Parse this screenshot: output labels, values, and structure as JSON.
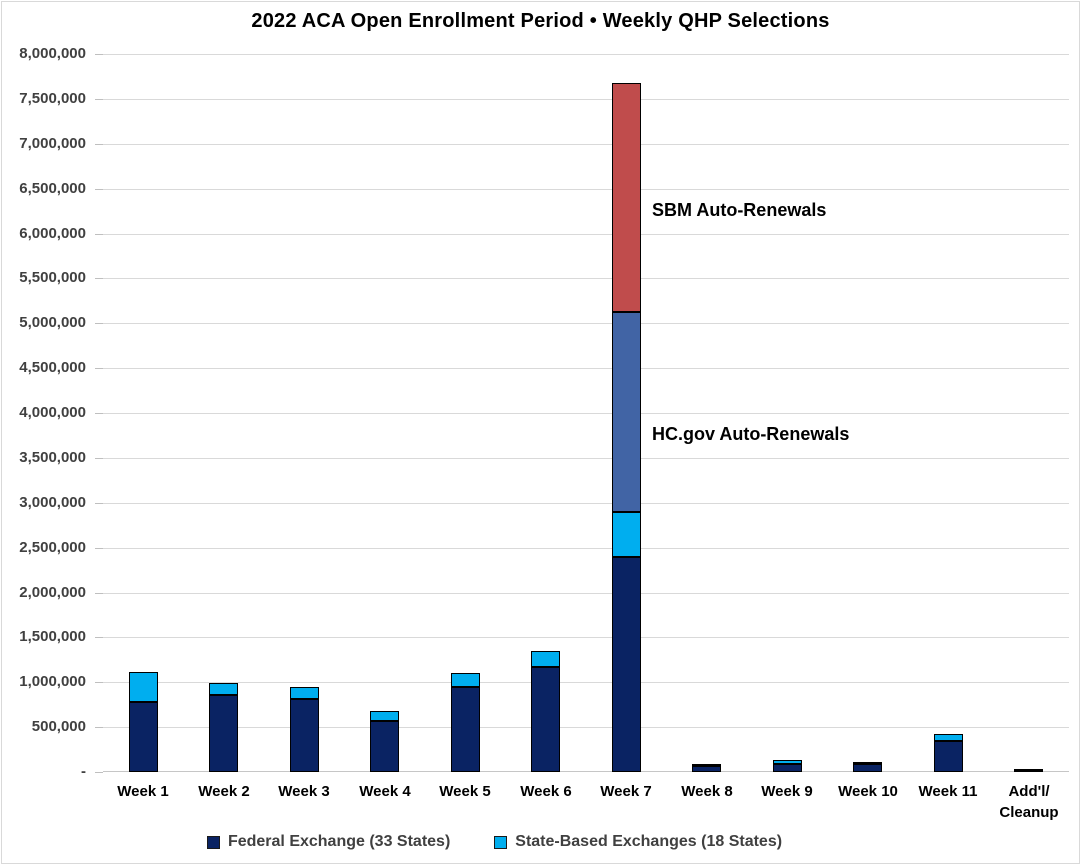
{
  "chart_data": {
    "type": "bar",
    "stacked": true,
    "title": "2022 ACA Open Enrollment Period • Weekly QHP Selections",
    "xlabel": "",
    "ylabel": "",
    "ylim": [
      0,
      8000000
    ],
    "ytick_step": 500000,
    "grid": true,
    "legend_position": "bottom",
    "categories": [
      "Week 1",
      "Week 2",
      "Week 3",
      "Week 4",
      "Week 5",
      "Week 6",
      "Week 7",
      "Week 8",
      "Week 9",
      "Week 10",
      "Week 11",
      "Add'l/Cleanup"
    ],
    "category_label_lines": [
      [
        "Week 1"
      ],
      [
        "Week 2"
      ],
      [
        "Week 3"
      ],
      [
        "Week 4"
      ],
      [
        "Week 5"
      ],
      [
        "Week 6"
      ],
      [
        "Week 7"
      ],
      [
        "Week 8"
      ],
      [
        "Week 9"
      ],
      [
        "Week 10"
      ],
      [
        "Week 11"
      ],
      [
        "Add'l/",
        "Cleanup"
      ]
    ],
    "ytick_labels": [
      "8,000,000",
      "7,500,000",
      "7,000,000",
      "6,500,000",
      "6,000,000",
      "5,500,000",
      "5,000,000",
      "4,500,000",
      "4,000,000",
      "3,500,000",
      "3,000,000",
      "2,500,000",
      "2,000,000",
      "1,500,000",
      "1,000,000",
      "500,000",
      "-"
    ],
    "series": [
      {
        "name": "Federal Exchange (33 States)",
        "color": "#0a2363",
        "in_legend": true,
        "values": [
          780000,
          860000,
          815000,
          565000,
          945000,
          1170000,
          2400000,
          70000,
          85000,
          85000,
          350000,
          15000
        ]
      },
      {
        "name": "State-Based Exchanges (18 States)",
        "color": "#00aeef",
        "in_legend": true,
        "values": [
          330000,
          135000,
          130000,
          110000,
          155000,
          180000,
          500000,
          20000,
          45000,
          15000,
          75000,
          25000
        ]
      },
      {
        "name": "HC.gov Auto-Renewals",
        "color": "#4164a5",
        "in_legend": false,
        "values": [
          0,
          0,
          0,
          0,
          0,
          0,
          2225000,
          0,
          0,
          0,
          0,
          0
        ]
      },
      {
        "name": "SBM Auto-Renewals",
        "color": "#c04c4c",
        "in_legend": false,
        "values": [
          0,
          0,
          0,
          0,
          0,
          0,
          2550000,
          0,
          0,
          0,
          0,
          0
        ]
      }
    ],
    "annotations": [
      {
        "text": "SBM Auto-Renewals",
        "points_to": "Week 7 red segment"
      },
      {
        "text": "HC.gov Auto-Renewals",
        "points_to": "Week 7 medium-blue segment"
      }
    ]
  },
  "legend": {
    "items": [
      {
        "label": "Federal Exchange (33 States)",
        "color": "#0a2363"
      },
      {
        "label": "State-Based Exchanges (18 States)",
        "color": "#00aeef"
      }
    ]
  },
  "colors": {
    "background": "#ffffff",
    "gridline": "#d9d9d9",
    "axis_line": "#c6c6c6",
    "y_label_text": "#404040",
    "x_label_text": "#000000",
    "title_text": "#000000",
    "bar_outline": "#000000"
  }
}
